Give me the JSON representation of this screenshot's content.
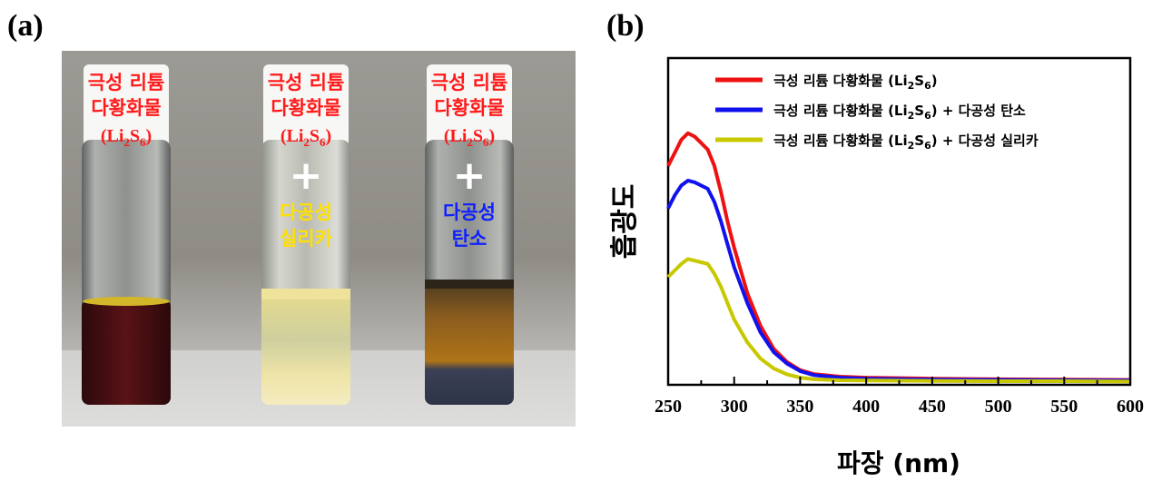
{
  "panel_a": {
    "label": "(a)",
    "vials": [
      {
        "cap_line1": "극성 리튬",
        "cap_line2": "다황화물",
        "formula_prefix": "(Li",
        "formula_sub1": "2",
        "formula_mid": "S",
        "formula_sub2": "6",
        "formula_suffix": ")",
        "plus": "",
        "added_line1": "",
        "added_line2": "",
        "added_color": "#ffe000"
      },
      {
        "cap_line1": "극성 리튬",
        "cap_line2": "다황화물",
        "formula_prefix": "(Li",
        "formula_sub1": "2",
        "formula_mid": "S",
        "formula_sub2": "6",
        "formula_suffix": ")",
        "plus": "+",
        "added_line1": "다공성",
        "added_line2": "실리카",
        "added_color": "#ffe000"
      },
      {
        "cap_line1": "극성 리튬",
        "cap_line2": "다황화물",
        "formula_prefix": "(Li",
        "formula_sub1": "2",
        "formula_mid": "S",
        "formula_sub2": "6",
        "formula_suffix": ")",
        "plus": "+",
        "added_line1": "다공성",
        "added_line2": "탄소",
        "added_color": "#1020ff"
      }
    ],
    "colors": {
      "cap_text": "#ff1a1a",
      "plus": "#ffffff"
    }
  },
  "panel_b": {
    "label": "(b)"
  },
  "chart_data": {
    "type": "line",
    "title": "",
    "xlabel": "파장 (nm)",
    "ylabel": "흡광도",
    "xlim": [
      250,
      600
    ],
    "xticks": [
      250,
      300,
      350,
      400,
      450,
      500,
      550,
      600
    ],
    "ylim": [
      0,
      1
    ],
    "y_tick_labels": false,
    "grid": false,
    "legend_position": "top-right",
    "series": [
      {
        "name": "극성 리튬 다황화물 (Li2S6)",
        "legend_prefix": "극성 리튬 다황화물 (Li",
        "legend_sub1": "2",
        "legend_mid": "S",
        "legend_sub2": "6",
        "legend_suffix": ")",
        "color": "#ee1111",
        "x": [
          250,
          255,
          260,
          265,
          270,
          275,
          280,
          285,
          290,
          295,
          300,
          310,
          320,
          330,
          340,
          350,
          360,
          380,
          400,
          450,
          500,
          550,
          600
        ],
        "y": [
          0.67,
          0.71,
          0.75,
          0.77,
          0.76,
          0.74,
          0.72,
          0.67,
          0.59,
          0.5,
          0.42,
          0.28,
          0.18,
          0.11,
          0.07,
          0.045,
          0.033,
          0.025,
          0.022,
          0.019,
          0.017,
          0.016,
          0.015
        ]
      },
      {
        "name": "극성 리튬 다황화물 (Li2S6) + 다공성 탄소",
        "legend_prefix": "극성 리튬 다황화물 (Li",
        "legend_sub1": "2",
        "legend_mid": "S",
        "legend_sub2": "6",
        "legend_suffix": ") + 다공성 탄소",
        "color": "#1111ee",
        "x": [
          250,
          255,
          260,
          265,
          270,
          275,
          280,
          285,
          290,
          295,
          300,
          310,
          320,
          330,
          340,
          350,
          360,
          380,
          400,
          450,
          500,
          550,
          600
        ],
        "y": [
          0.54,
          0.58,
          0.61,
          0.625,
          0.62,
          0.61,
          0.6,
          0.56,
          0.5,
          0.43,
          0.36,
          0.25,
          0.16,
          0.1,
          0.065,
          0.042,
          0.03,
          0.022,
          0.019,
          0.016,
          0.015,
          0.014,
          0.013
        ]
      },
      {
        "name": "극성 리튬 다황화물 (Li2S6) + 다공성 실리카",
        "legend_prefix": "극성 리튬 다황화물 (Li",
        "legend_sub1": "2",
        "legend_mid": "S",
        "legend_sub2": "6",
        "legend_suffix": ") + 다공성 실리카",
        "color": "#c8c800",
        "x": [
          250,
          255,
          260,
          265,
          270,
          275,
          280,
          285,
          290,
          295,
          300,
          310,
          320,
          330,
          340,
          350,
          360,
          380,
          400,
          450,
          500,
          550,
          600
        ],
        "y": [
          0.33,
          0.35,
          0.37,
          0.385,
          0.38,
          0.375,
          0.37,
          0.34,
          0.3,
          0.25,
          0.2,
          0.13,
          0.08,
          0.05,
          0.032,
          0.022,
          0.017,
          0.014,
          0.013,
          0.012,
          0.011,
          0.011,
          0.01
        ]
      }
    ]
  }
}
